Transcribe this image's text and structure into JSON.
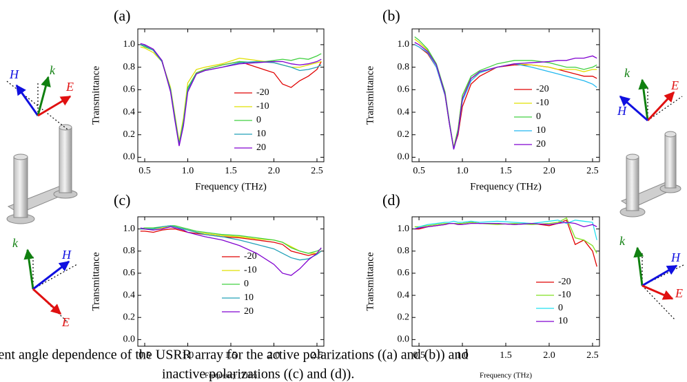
{
  "chart_data": [
    {
      "type": "line",
      "label": "(a)",
      "xlabel": "Frequency (THz)",
      "ylabel": "Transmittance",
      "x": [
        0.45,
        0.5,
        0.6,
        0.7,
        0.8,
        0.85,
        0.9,
        0.95,
        1.0,
        1.1,
        1.2,
        1.4,
        1.6,
        1.8,
        2.0,
        2.1,
        2.2,
        2.3,
        2.4,
        2.5,
        2.55
      ],
      "xlim": [
        0.42,
        2.58
      ],
      "ylim": [
        -0.04,
        1.14
      ],
      "xticks": [
        0.5,
        {
          "value": 1,
          "label": "1.0"
        },
        1.5,
        {
          "value": 2,
          "label": "2.0"
        },
        2.5
      ],
      "yticks": [
        {
          "value": 0,
          "label": "0.0"
        },
        0.2,
        0.4,
        0.6,
        0.8,
        {
          "value": 1,
          "label": "1.0"
        }
      ],
      "series": [
        {
          "name": "-20",
          "color": "#e00000",
          "values": [
            1.0,
            0.99,
            0.95,
            0.85,
            0.6,
            0.35,
            0.12,
            0.3,
            0.6,
            0.75,
            0.78,
            0.82,
            0.85,
            0.8,
            0.75,
            0.65,
            0.62,
            0.68,
            0.72,
            0.78,
            0.85
          ]
        },
        {
          "name": "-10",
          "color": "#e0e000",
          "values": [
            0.98,
            0.97,
            0.93,
            0.85,
            0.62,
            0.38,
            0.14,
            0.35,
            0.66,
            0.78,
            0.8,
            0.83,
            0.88,
            0.86,
            0.84,
            0.82,
            0.8,
            0.8,
            0.82,
            0.84,
            0.85
          ]
        },
        {
          "name": "0",
          "color": "#40d040",
          "values": [
            1.0,
            0.98,
            0.95,
            0.86,
            0.6,
            0.36,
            0.12,
            0.32,
            0.62,
            0.75,
            0.78,
            0.82,
            0.85,
            0.84,
            0.86,
            0.87,
            0.86,
            0.88,
            0.87,
            0.9,
            0.92
          ]
        },
        {
          "name": "10",
          "color": "#20a0b8",
          "values": [
            1.0,
            0.99,
            0.95,
            0.85,
            0.6,
            0.35,
            0.11,
            0.3,
            0.6,
            0.74,
            0.77,
            0.8,
            0.84,
            0.85,
            0.84,
            0.82,
            0.8,
            0.77,
            0.78,
            0.8,
            0.82
          ]
        },
        {
          "name": "20",
          "color": "#8000d0",
          "values": [
            1.01,
            1.0,
            0.96,
            0.86,
            0.58,
            0.33,
            0.1,
            0.28,
            0.58,
            0.74,
            0.77,
            0.8,
            0.83,
            0.84,
            0.85,
            0.85,
            0.83,
            0.82,
            0.83,
            0.85,
            0.87
          ]
        }
      ]
    },
    {
      "type": "line",
      "label": "(b)",
      "xlabel": "Frequency (THz)",
      "ylabel": "Transmittance",
      "x": [
        0.45,
        0.5,
        0.6,
        0.7,
        0.8,
        0.85,
        0.9,
        0.95,
        1.0,
        1.1,
        1.2,
        1.4,
        1.6,
        1.8,
        2.0,
        2.1,
        2.2,
        2.3,
        2.4,
        2.5,
        2.55
      ],
      "xlim": [
        0.42,
        2.58
      ],
      "ylim": [
        -0.04,
        1.14
      ],
      "xticks": [
        0.5,
        {
          "value": 1,
          "label": "1.0"
        },
        1.5,
        {
          "value": 2,
          "label": "2.0"
        },
        2.5
      ],
      "yticks": [
        {
          "value": 0,
          "label": "0.0"
        },
        0.2,
        0.4,
        0.6,
        0.8,
        {
          "value": 1,
          "label": "1.0"
        }
      ],
      "series": [
        {
          "name": "-20",
          "color": "#e00000",
          "values": [
            1.0,
            0.98,
            0.92,
            0.8,
            0.55,
            0.3,
            0.08,
            0.2,
            0.45,
            0.65,
            0.72,
            0.8,
            0.82,
            0.82,
            0.8,
            0.78,
            0.76,
            0.74,
            0.72,
            0.72,
            0.7
          ]
        },
        {
          "name": "-10",
          "color": "#e0e000",
          "values": [
            1.05,
            1.02,
            0.95,
            0.82,
            0.55,
            0.3,
            0.09,
            0.25,
            0.55,
            0.7,
            0.75,
            0.8,
            0.83,
            0.82,
            0.8,
            0.78,
            0.78,
            0.78,
            0.76,
            0.78,
            0.78
          ]
        },
        {
          "name": "0",
          "color": "#40d040",
          "values": [
            1.07,
            1.04,
            0.96,
            0.83,
            0.58,
            0.32,
            0.08,
            0.25,
            0.55,
            0.72,
            0.77,
            0.83,
            0.86,
            0.86,
            0.84,
            0.82,
            0.8,
            0.8,
            0.78,
            0.8,
            0.82
          ]
        },
        {
          "name": "10",
          "color": "#20b8f0",
          "values": [
            1.0,
            0.98,
            0.93,
            0.8,
            0.55,
            0.3,
            0.07,
            0.22,
            0.5,
            0.68,
            0.75,
            0.8,
            0.83,
            0.8,
            0.76,
            0.74,
            0.72,
            0.7,
            0.68,
            0.65,
            0.62
          ]
        },
        {
          "name": "20",
          "color": "#8000d0",
          "values": [
            1.02,
            1.0,
            0.94,
            0.82,
            0.56,
            0.3,
            0.07,
            0.22,
            0.52,
            0.7,
            0.76,
            0.8,
            0.83,
            0.84,
            0.85,
            0.86,
            0.86,
            0.88,
            0.88,
            0.9,
            0.88
          ]
        }
      ]
    },
    {
      "type": "line",
      "label": "(c)",
      "xlabel": "Frequency (THz)",
      "ylabel": "Transmittance",
      "x": [
        0.45,
        0.5,
        0.6,
        0.7,
        0.8,
        0.85,
        0.9,
        0.95,
        1.0,
        1.1,
        1.2,
        1.4,
        1.6,
        1.8,
        2.0,
        2.1,
        2.2,
        2.3,
        2.4,
        2.5,
        2.55
      ],
      "xlim": [
        0.42,
        2.58
      ],
      "ylim": [
        -0.06,
        1.11
      ],
      "xticks": [
        0.5,
        {
          "value": 1,
          "label": "1.0"
        },
        1.5,
        {
          "value": 2,
          "label": "2.0"
        },
        2.5
      ],
      "yticks": [
        {
          "value": 0,
          "label": "0.0"
        },
        0.2,
        0.4,
        0.6,
        0.8,
        {
          "value": 1,
          "label": "1.0"
        }
      ],
      "series": [
        {
          "name": "-20",
          "color": "#e00000",
          "values": [
            0.98,
            0.98,
            0.97,
            0.99,
            1.0,
            1.0,
            0.99,
            0.98,
            0.97,
            0.96,
            0.95,
            0.93,
            0.92,
            0.9,
            0.88,
            0.86,
            0.8,
            0.78,
            0.76,
            0.78,
            0.8
          ]
        },
        {
          "name": "-10",
          "color": "#e0e000",
          "values": [
            1.0,
            1.0,
            1.0,
            1.01,
            1.02,
            1.02,
            1.01,
            1.0,
            0.99,
            0.97,
            0.96,
            0.94,
            0.93,
            0.91,
            0.9,
            0.88,
            0.84,
            0.8,
            0.78,
            0.78,
            0.8
          ]
        },
        {
          "name": "0",
          "color": "#40d040",
          "values": [
            1.0,
            1.01,
            1.01,
            1.02,
            1.03,
            1.03,
            1.02,
            1.01,
            1.0,
            0.98,
            0.97,
            0.95,
            0.94,
            0.92,
            0.9,
            0.88,
            0.83,
            0.8,
            0.78,
            0.8,
            0.82
          ]
        },
        {
          "name": "10",
          "color": "#20a0b8",
          "values": [
            1.0,
            1.0,
            1.0,
            1.02,
            1.03,
            1.02,
            1.01,
            1.0,
            0.99,
            0.97,
            0.95,
            0.93,
            0.9,
            0.86,
            0.82,
            0.78,
            0.74,
            0.72,
            0.73,
            0.77,
            0.8
          ]
        },
        {
          "name": "20",
          "color": "#8000d0",
          "values": [
            1.01,
            1.0,
            0.99,
            1.0,
            1.02,
            1.01,
            1.0,
            0.99,
            0.97,
            0.95,
            0.93,
            0.9,
            0.85,
            0.78,
            0.68,
            0.6,
            0.58,
            0.64,
            0.72,
            0.78,
            0.83
          ]
        }
      ]
    },
    {
      "type": "line",
      "label": "(d)",
      "xlabel": "Frequency (THz)",
      "ylabel": "Transmittance",
      "x": [
        0.45,
        0.5,
        0.6,
        0.7,
        0.8,
        0.85,
        0.9,
        0.95,
        1.0,
        1.1,
        1.2,
        1.4,
        1.6,
        1.8,
        2.0,
        2.1,
        2.2,
        2.3,
        2.4,
        2.5,
        2.55
      ],
      "xlim": [
        0.42,
        2.58
      ],
      "ylim": [
        -0.06,
        1.11
      ],
      "xticks": [
        0.5,
        {
          "value": 1,
          "label": "1.0"
        },
        1.5,
        {
          "value": 2,
          "label": "2.0"
        },
        2.5
      ],
      "yticks": [
        {
          "value": 0,
          "label": "0.0"
        },
        0.2,
        0.4,
        0.6,
        0.8,
        {
          "value": 1,
          "label": "1.0"
        }
      ],
      "series": [
        {
          "name": "-20",
          "color": "#e00000",
          "values": [
            1.0,
            1.0,
            1.02,
            1.03,
            1.04,
            1.05,
            1.05,
            1.04,
            1.05,
            1.06,
            1.05,
            1.05,
            1.04,
            1.05,
            1.03,
            1.05,
            1.08,
            0.86,
            0.9,
            0.8,
            0.66
          ]
        },
        {
          "name": "-10",
          "color": "#80e020",
          "values": [
            1.02,
            1.02,
            1.03,
            1.04,
            1.05,
            1.05,
            1.05,
            1.05,
            1.05,
            1.06,
            1.05,
            1.04,
            1.05,
            1.04,
            1.05,
            1.06,
            1.1,
            0.92,
            0.9,
            0.85,
            0.78
          ]
        },
        {
          "name": "0",
          "color": "#20e0f0",
          "values": [
            1.0,
            1.02,
            1.04,
            1.05,
            1.06,
            1.06,
            1.07,
            1.06,
            1.06,
            1.07,
            1.06,
            1.07,
            1.06,
            1.05,
            1.07,
            1.08,
            1.05,
            1.08,
            1.07,
            1.06,
            0.9
          ]
        },
        {
          "name": "10",
          "color": "#8000d0",
          "values": [
            1.0,
            1.01,
            1.02,
            1.03,
            1.04,
            1.05,
            1.05,
            1.04,
            1.04,
            1.05,
            1.05,
            1.05,
            1.04,
            1.05,
            1.04,
            1.05,
            1.06,
            1.05,
            1.02,
            1.04,
            1.02
          ]
        }
      ]
    }
  ],
  "diagrams": [
    {
      "labels": [
        "H",
        "k",
        "E"
      ]
    },
    {
      "labels": [
        "k",
        "H",
        "E"
      ]
    },
    {
      "labels": [
        "k",
        "E",
        "H"
      ]
    },
    {
      "labels": [
        "k",
        "H",
        "E"
      ]
    }
  ],
  "caption": [
    "lent angle dependence of the USRR array for the active polarizations ((a) and (b)) and",
    "inactive polarizations ((c) and (d))."
  ]
}
